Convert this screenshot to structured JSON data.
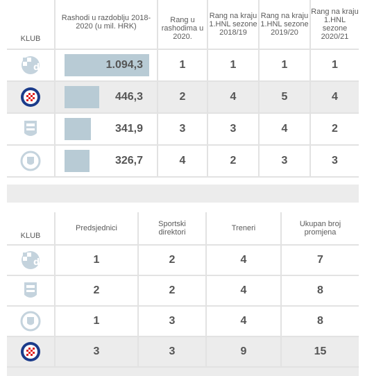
{
  "table1": {
    "headers": {
      "club": "KLUB",
      "expenses": "Rashodi u razdoblju 2018-2020 (u mil. HRK)",
      "rank_expenses": "Rang u rashodima u 2020.",
      "rank_1819": "Rang na kraju 1.HNL sezone 2018/19",
      "rank_1920": "Rang na kraju 1.HNL sezone 2019/20",
      "rank_2021": "Rang na kraju 1.HNL sezone 2020/21"
    },
    "rows": [
      {
        "club_logo": "dinamo-logo",
        "expenses": "1.094,3",
        "expenses_value": 1094.3,
        "rank_expenses": "1",
        "rank_1819": "1",
        "rank_1920": "1",
        "rank_2021": "1"
      },
      {
        "club_logo": "hajduk-logo",
        "expenses": "446,3",
        "expenses_value": 446.3,
        "rank_expenses": "2",
        "rank_1819": "4",
        "rank_1920": "5",
        "rank_2021": "4"
      },
      {
        "club_logo": "osijek-logo",
        "expenses": "341,9",
        "expenses_value": 341.9,
        "rank_expenses": "3",
        "rank_1819": "3",
        "rank_1920": "4",
        "rank_2021": "2"
      },
      {
        "club_logo": "rijeka-logo",
        "expenses": "326,7",
        "expenses_value": 326.7,
        "rank_expenses": "4",
        "rank_1819": "2",
        "rank_1920": "3",
        "rank_2021": "3"
      }
    ]
  },
  "table2": {
    "headers": {
      "club": "KLUB",
      "presidents": "Predsjednici",
      "directors": "Sportski direktori",
      "coaches": "Treneri",
      "total": "Ukupan broj promjena"
    },
    "rows": [
      {
        "club_logo": "dinamo-logo",
        "presidents": "1",
        "directors": "2",
        "coaches": "4",
        "total": "7"
      },
      {
        "club_logo": "osijek-logo",
        "presidents": "2",
        "directors": "2",
        "coaches": "4",
        "total": "8"
      },
      {
        "club_logo": "rijeka-logo",
        "presidents": "1",
        "directors": "3",
        "coaches": "4",
        "total": "8"
      },
      {
        "club_logo": "hajduk-logo",
        "presidents": "3",
        "directors": "3",
        "coaches": "9",
        "total": "15"
      }
    ]
  }
}
